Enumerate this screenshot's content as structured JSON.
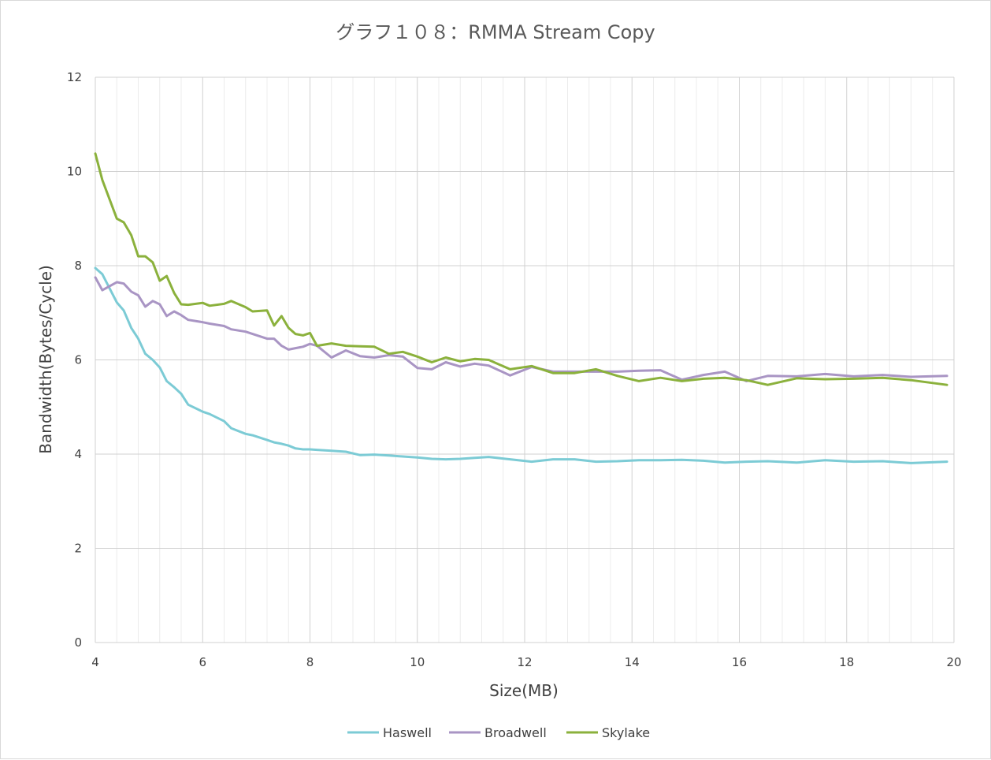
{
  "chart_data": {
    "type": "line",
    "title": "グラフ１０８：RMMA Stream Copy",
    "xlabel": "Size(MB)",
    "ylabel": "Bandwidth(Bytes/Cycle)",
    "xlim": [
      4,
      20
    ],
    "ylim": [
      0,
      12
    ],
    "x_ticks": [
      4,
      6,
      8,
      10,
      12,
      14,
      16,
      18,
      20
    ],
    "y_ticks": [
      0,
      2,
      4,
      6,
      8,
      10,
      12
    ],
    "grid": true,
    "legend_position": "bottom",
    "x": [
      4.0,
      4.13,
      4.4,
      4.53,
      4.67,
      4.8,
      4.93,
      5.07,
      5.2,
      5.33,
      5.47,
      5.6,
      5.73,
      6.0,
      6.13,
      6.4,
      6.53,
      6.8,
      6.93,
      7.2,
      7.33,
      7.47,
      7.6,
      7.73,
      7.87,
      8.0,
      8.13,
      8.4,
      8.67,
      8.93,
      9.2,
      9.47,
      9.73,
      10.0,
      10.27,
      10.53,
      10.8,
      11.07,
      11.33,
      11.73,
      12.13,
      12.53,
      12.93,
      13.33,
      13.73,
      14.13,
      14.53,
      14.93,
      15.33,
      15.73,
      16.13,
      16.53,
      17.07,
      17.6,
      18.13,
      18.67,
      19.2,
      19.87
    ],
    "series": [
      {
        "name": "Haswell",
        "color": "#7ccbd5",
        "values": [
          7.95,
          7.82,
          7.22,
          7.05,
          6.68,
          6.45,
          6.13,
          6.0,
          5.84,
          5.55,
          5.42,
          5.28,
          5.05,
          4.9,
          4.85,
          4.7,
          4.55,
          4.43,
          4.4,
          4.3,
          4.25,
          4.22,
          4.18,
          4.12,
          4.1,
          4.1,
          4.09,
          4.07,
          4.05,
          3.98,
          3.99,
          3.97,
          3.95,
          3.93,
          3.9,
          3.89,
          3.9,
          3.92,
          3.94,
          3.89,
          3.84,
          3.89,
          3.89,
          3.84,
          3.85,
          3.87,
          3.87,
          3.88,
          3.86,
          3.82,
          3.84,
          3.85,
          3.82,
          3.87,
          3.84,
          3.85,
          3.81,
          3.84
        ]
      },
      {
        "name": "Broadwell",
        "color": "#a995c4",
        "values": [
          7.75,
          7.48,
          7.65,
          7.62,
          7.45,
          7.37,
          7.13,
          7.25,
          7.18,
          6.93,
          7.03,
          6.95,
          6.85,
          6.8,
          6.77,
          6.72,
          6.65,
          6.6,
          6.55,
          6.45,
          6.45,
          6.3,
          6.22,
          6.25,
          6.28,
          6.34,
          6.3,
          6.05,
          6.2,
          6.08,
          6.05,
          6.1,
          6.07,
          5.83,
          5.8,
          5.95,
          5.86,
          5.92,
          5.88,
          5.67,
          5.85,
          5.75,
          5.75,
          5.75,
          5.75,
          5.77,
          5.78,
          5.58,
          5.68,
          5.75,
          5.55,
          5.66,
          5.65,
          5.7,
          5.65,
          5.68,
          5.64,
          5.66
        ]
      },
      {
        "name": "Skylake",
        "color": "#8bb13c",
        "values": [
          10.38,
          9.82,
          9.0,
          8.92,
          8.65,
          8.2,
          8.2,
          8.07,
          7.68,
          7.78,
          7.42,
          7.18,
          7.17,
          7.21,
          7.15,
          7.19,
          7.25,
          7.12,
          7.03,
          7.05,
          6.73,
          6.93,
          6.68,
          6.55,
          6.52,
          6.57,
          6.3,
          6.35,
          6.3,
          6.29,
          6.28,
          6.13,
          6.17,
          6.07,
          5.95,
          6.05,
          5.97,
          6.02,
          6.0,
          5.8,
          5.87,
          5.72,
          5.72,
          5.8,
          5.66,
          5.55,
          5.62,
          5.55,
          5.6,
          5.62,
          5.57,
          5.47,
          5.61,
          5.59,
          5.6,
          5.62,
          5.57,
          5.47
        ]
      }
    ]
  }
}
